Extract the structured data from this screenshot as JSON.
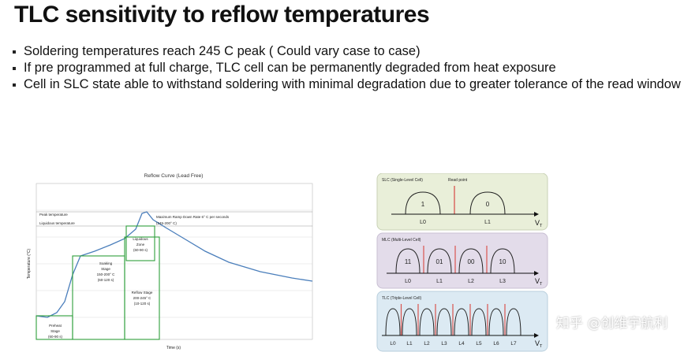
{
  "slide": {
    "title": "TLC sensitivity to reflow temperatures",
    "bullets": [
      "Soldering temperatures reach 245 C peak ( Could vary case to case)",
      "If pre programmed at full charge, TLC cell can be permanently degraded from heat exposure",
      "Cell in SLC state able to withstand soldering with minimal degradation due to greater tolerance of the read window"
    ]
  },
  "reflow_chart": {
    "title": "Reflow Curve (Lead Free)",
    "ylabel": "Temperature (°C)",
    "xlabel": "Time (s)",
    "peak_label": "Peak temperature",
    "liquidous_label": "Liquidous temperature",
    "ramp_label_1": "Maximum Ramp Down Rate 6° C per seconds",
    "ramp_label_2": "(245-200° C)",
    "liquidous_zone_1": "Liquidous",
    "liquidous_zone_2": "Zone",
    "liquidous_zone_3": "(60-90 s)",
    "soaking_1": "Soaking",
    "soaking_2": "Stage",
    "soaking_3": "150-200° C",
    "soaking_4": "(60-120 s)",
    "reflow_1": "Reflow Stage",
    "reflow_2": "200-245° C",
    "reflow_3": "(10-120 s)",
    "preheat_1": "Preheat",
    "preheat_2": "Stage",
    "preheat_3": "(60-90 s)"
  },
  "cell_states": {
    "slc": {
      "title": "SLC (Single-Level Cell)",
      "read_point": "Read point",
      "bits": [
        "1",
        "0"
      ],
      "levels": [
        "L0",
        "L1"
      ],
      "axis": "V",
      "axis_sub": "T"
    },
    "mlc": {
      "title": "MLC (Multi-Level Cell)",
      "bits": [
        "11",
        "01",
        "00",
        "10"
      ],
      "levels": [
        "L0",
        "L1",
        "L2",
        "L3"
      ],
      "axis": "V",
      "axis_sub": "T"
    },
    "tlc": {
      "title": "TLC (Triple-Level Cell)",
      "levels": [
        "L0",
        "L1",
        "L2",
        "L3",
        "L4",
        "L5",
        "L6",
        "L7"
      ],
      "axis": "V",
      "axis_sub": "T"
    },
    "colors": {
      "slc_bg": "#e9efd9",
      "mlc_bg": "#e3dcea",
      "tlc_bg": "#dceaf3",
      "read_line": "#d9534f"
    }
  },
  "watermark": "知乎 @创维宇航利"
}
